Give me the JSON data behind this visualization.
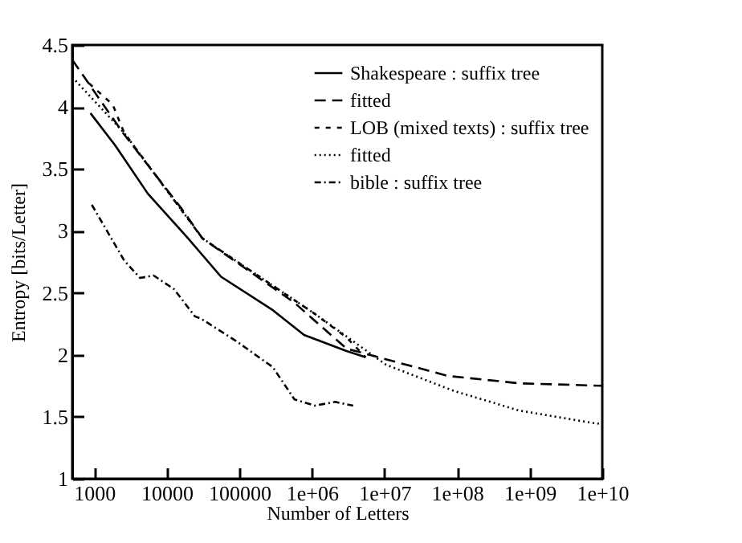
{
  "chart_data": {
    "type": "line",
    "xlabel": "Number of Letters",
    "ylabel": "Entropy [bits/Letter]",
    "log": "x",
    "grid": false,
    "legend": "top right",
    "xlim": [
      500,
      10000000000
    ],
    "ylim": [
      1,
      4.5
    ],
    "xticks": [
      1000,
      10000,
      100000,
      {
        "value": 1000000,
        "label": "1e+06"
      },
      {
        "value": 10000000,
        "label": "1e+07"
      },
      {
        "value": 100000000,
        "label": "1e+08"
      },
      {
        "value": 1000000000,
        "label": "1e+09"
      },
      {
        "value": 10000000000,
        "label": "1e+10"
      }
    ],
    "yticks": [
      1,
      1.5,
      2,
      2.5,
      3,
      3.5,
      4,
      4.5
    ],
    "series": [
      {
        "name": "Shakespeare : suffix tree",
        "color": "#000000",
        "line_style": "solid",
        "x": [
          890,
          1950,
          5500,
          19000,
          56000,
          290000,
          780000,
          3000000,
          5500000
        ],
        "values": [
          3.95,
          3.69,
          3.3,
          2.95,
          2.63,
          2.36,
          2.16,
          2.03,
          1.98
        ]
      },
      {
        "name": "fitted",
        "color": "#000000",
        "line_style": "dashed",
        "x": [
          500,
          2500,
          16000,
          31000,
          575000,
          3000000,
          74000000,
          720000000,
          10000000000
        ],
        "values": [
          4.38,
          3.79,
          3.18,
          2.94,
          2.42,
          2.05,
          1.83,
          1.77,
          1.75
        ]
      },
      {
        "name": "LOB (mixed texts) : suffix tree",
        "color": "#000000",
        "line_style": "short-dashed",
        "x": [
          850,
          1800,
          2600,
          31000,
          1100000,
          3000000,
          5500000
        ],
        "values": [
          4.19,
          4.02,
          3.79,
          2.94,
          2.33,
          2.14,
          1.98
        ]
      },
      {
        "name": "fitted",
        "color": "#000000",
        "line_style": "dotted",
        "x": [
          500,
          2600,
          31000,
          1100000,
          10500000,
          89000000,
          720000000,
          7400000000,
          10000000000
        ],
        "values": [
          4.24,
          3.79,
          2.94,
          2.33,
          1.92,
          1.71,
          1.55,
          1.45,
          1.44
        ]
      },
      {
        "name": "bible : suffix tree",
        "color": "#000000",
        "line_style": "dashdot",
        "x": [
          930,
          2600,
          4300,
          6600,
          12600,
          24500,
          30000,
          91000,
          290000,
          575000,
          1100000,
          2100000,
          3700000
        ],
        "values": [
          3.21,
          2.76,
          2.62,
          2.64,
          2.53,
          2.31,
          2.29,
          2.11,
          1.9,
          1.64,
          1.59,
          1.62,
          1.59
        ]
      }
    ]
  }
}
